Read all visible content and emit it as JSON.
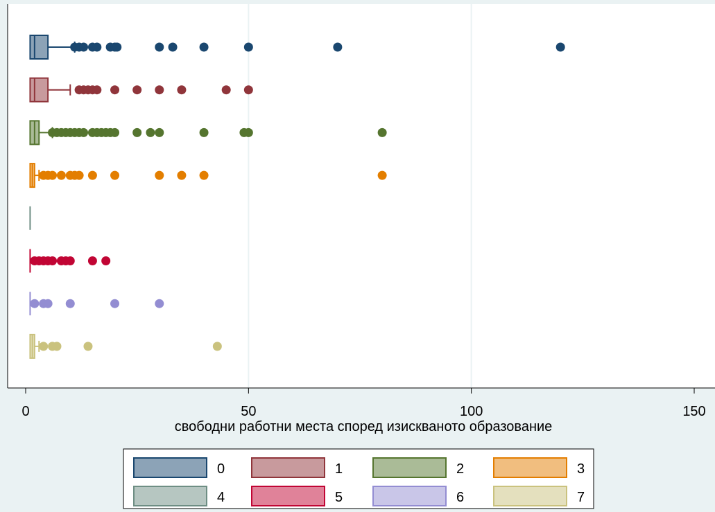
{
  "chart_data": {
    "type": "boxplot",
    "orientation": "horizontal",
    "xlabel": "свободни работни места според изискваното образование",
    "xlim": [
      0,
      150
    ],
    "xticks": [
      0,
      50,
      100,
      150
    ],
    "xtick_labels": [
      "0",
      "50",
      "100",
      "150"
    ],
    "grid": true,
    "legend_position": "bottom",
    "series": [
      {
        "name": "0",
        "color": "#1a476f",
        "fill": "#8ca3b7",
        "min": 1,
        "q1": 1,
        "median": 2,
        "q3": 5,
        "whisker_high": 11,
        "outliers": [
          11,
          12,
          13,
          15,
          16,
          19,
          20,
          20.5,
          30,
          33,
          40,
          50,
          70,
          120
        ]
      },
      {
        "name": "1",
        "color": "#90353b",
        "fill": "#c89a9d",
        "min": 1,
        "q1": 1,
        "median": 2,
        "q3": 5,
        "whisker_high": 10,
        "outliers": [
          12,
          13,
          14,
          15,
          16,
          20,
          25,
          30,
          35,
          45,
          50
        ]
      },
      {
        "name": "2",
        "color": "#55752f",
        "fill": "#aabb97",
        "min": 1,
        "q1": 1,
        "median": 2,
        "q3": 3,
        "whisker_high": 6,
        "outliers": [
          6,
          7,
          8,
          9,
          10,
          11,
          12,
          13,
          15,
          16,
          17,
          18,
          19,
          20,
          25,
          28,
          30,
          40,
          49,
          50,
          80
        ]
      },
      {
        "name": "3",
        "color": "#e37e00",
        "fill": "#f1be7f",
        "min": 1,
        "q1": 1,
        "median": 1.5,
        "q3": 2,
        "whisker_high": 3,
        "outliers": [
          4,
          5,
          6,
          8,
          10,
          11,
          12,
          15,
          20,
          30,
          35,
          40,
          80
        ]
      },
      {
        "name": "4",
        "color": "#6e8e84",
        "fill": "#b6c6c1",
        "min": 1,
        "q1": 1,
        "median": 1,
        "q3": 1,
        "whisker_high": 1,
        "outliers": []
      },
      {
        "name": "5",
        "color": "#c10534",
        "fill": "#e08299",
        "min": 1,
        "q1": 1,
        "median": 1,
        "q3": 1,
        "whisker_high": 1,
        "outliers": [
          2,
          3,
          4,
          5,
          6,
          8,
          9,
          10,
          15,
          18
        ]
      },
      {
        "name": "6",
        "color": "#938dd2",
        "fill": "#c9c6e8",
        "min": 1,
        "q1": 1,
        "median": 1,
        "q3": 1,
        "whisker_high": 1,
        "outliers": [
          2,
          4,
          5,
          10,
          20,
          30
        ]
      },
      {
        "name": "7",
        "color": "#cac27e",
        "fill": "#e4e0be",
        "min": 1,
        "q1": 1,
        "median": 1.5,
        "q3": 2,
        "whisker_high": 3,
        "outliers": [
          4,
          6,
          7,
          14,
          43
        ]
      }
    ]
  }
}
